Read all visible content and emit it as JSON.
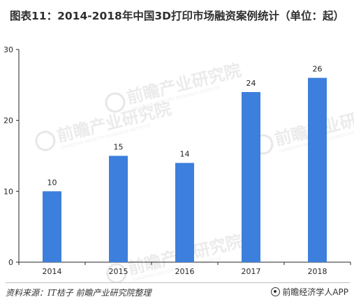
{
  "title": "图表11：2014-2018年中国3D打印市场融资案例统计（单位：起）",
  "chart_data": {
    "type": "bar",
    "categories": [
      "2014",
      "2015",
      "2016",
      "2017",
      "2018"
    ],
    "values": [
      10,
      15,
      14,
      24,
      26
    ],
    "ylim": [
      0,
      30
    ],
    "yticks": [
      0,
      10,
      20,
      30
    ],
    "xlabel": "",
    "ylabel": "",
    "grid": false,
    "bar_color": "#3d7fdc",
    "data_labels": true
  },
  "watermark": {
    "text": "前瞻产业研究院",
    "subtext": "QIANZHAN INDUSTRY RESEARCH INSTITUTE"
  },
  "footer": {
    "source": "资料来源：IT桔子  前瞻产业研究院整理",
    "brand": "前瞻经济学人APP"
  }
}
